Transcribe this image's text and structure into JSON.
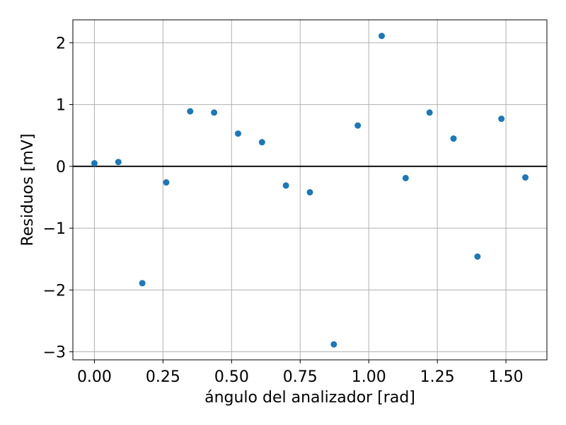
{
  "chart_data": {
    "type": "scatter",
    "title": "",
    "xlabel": "ángulo del analizador [rad]",
    "ylabel": "Residuos [mV]",
    "xlim": [
      -0.0785,
      1.6493
    ],
    "ylim": [
      -3.13,
      2.37
    ],
    "grid": true,
    "zero_line": 0,
    "x_ticks": [
      0.0,
      0.25,
      0.5,
      0.75,
      1.0,
      1.25,
      1.5
    ],
    "x_tick_labels": [
      "0.00",
      "0.25",
      "0.50",
      "0.75",
      "1.00",
      "1.25",
      "1.50"
    ],
    "y_ticks": [
      -3,
      -2,
      -1,
      0,
      1,
      2
    ],
    "y_tick_labels": [
      "−3",
      "−2",
      "−1",
      "0",
      "1",
      "2"
    ],
    "colors": {
      "points": "#1f77b4",
      "grid": "#b0b0b0",
      "zero_line": "#000000",
      "frame": "#000000"
    },
    "series": [
      {
        "x": [
          0.0,
          0.0873,
          0.1745,
          0.2618,
          0.3491,
          0.4363,
          0.5236,
          0.6109,
          0.6981,
          0.7854,
          0.8727,
          0.9599,
          1.0472,
          1.1345,
          1.2217,
          1.309,
          1.3963,
          1.4835,
          1.5708
        ],
        "y": [
          0.05,
          0.07,
          -1.89,
          -0.26,
          0.89,
          0.87,
          0.53,
          0.39,
          -0.31,
          -0.42,
          -2.88,
          0.66,
          2.11,
          -0.19,
          0.87,
          0.45,
          -1.46,
          0.77,
          -0.18
        ]
      }
    ]
  }
}
